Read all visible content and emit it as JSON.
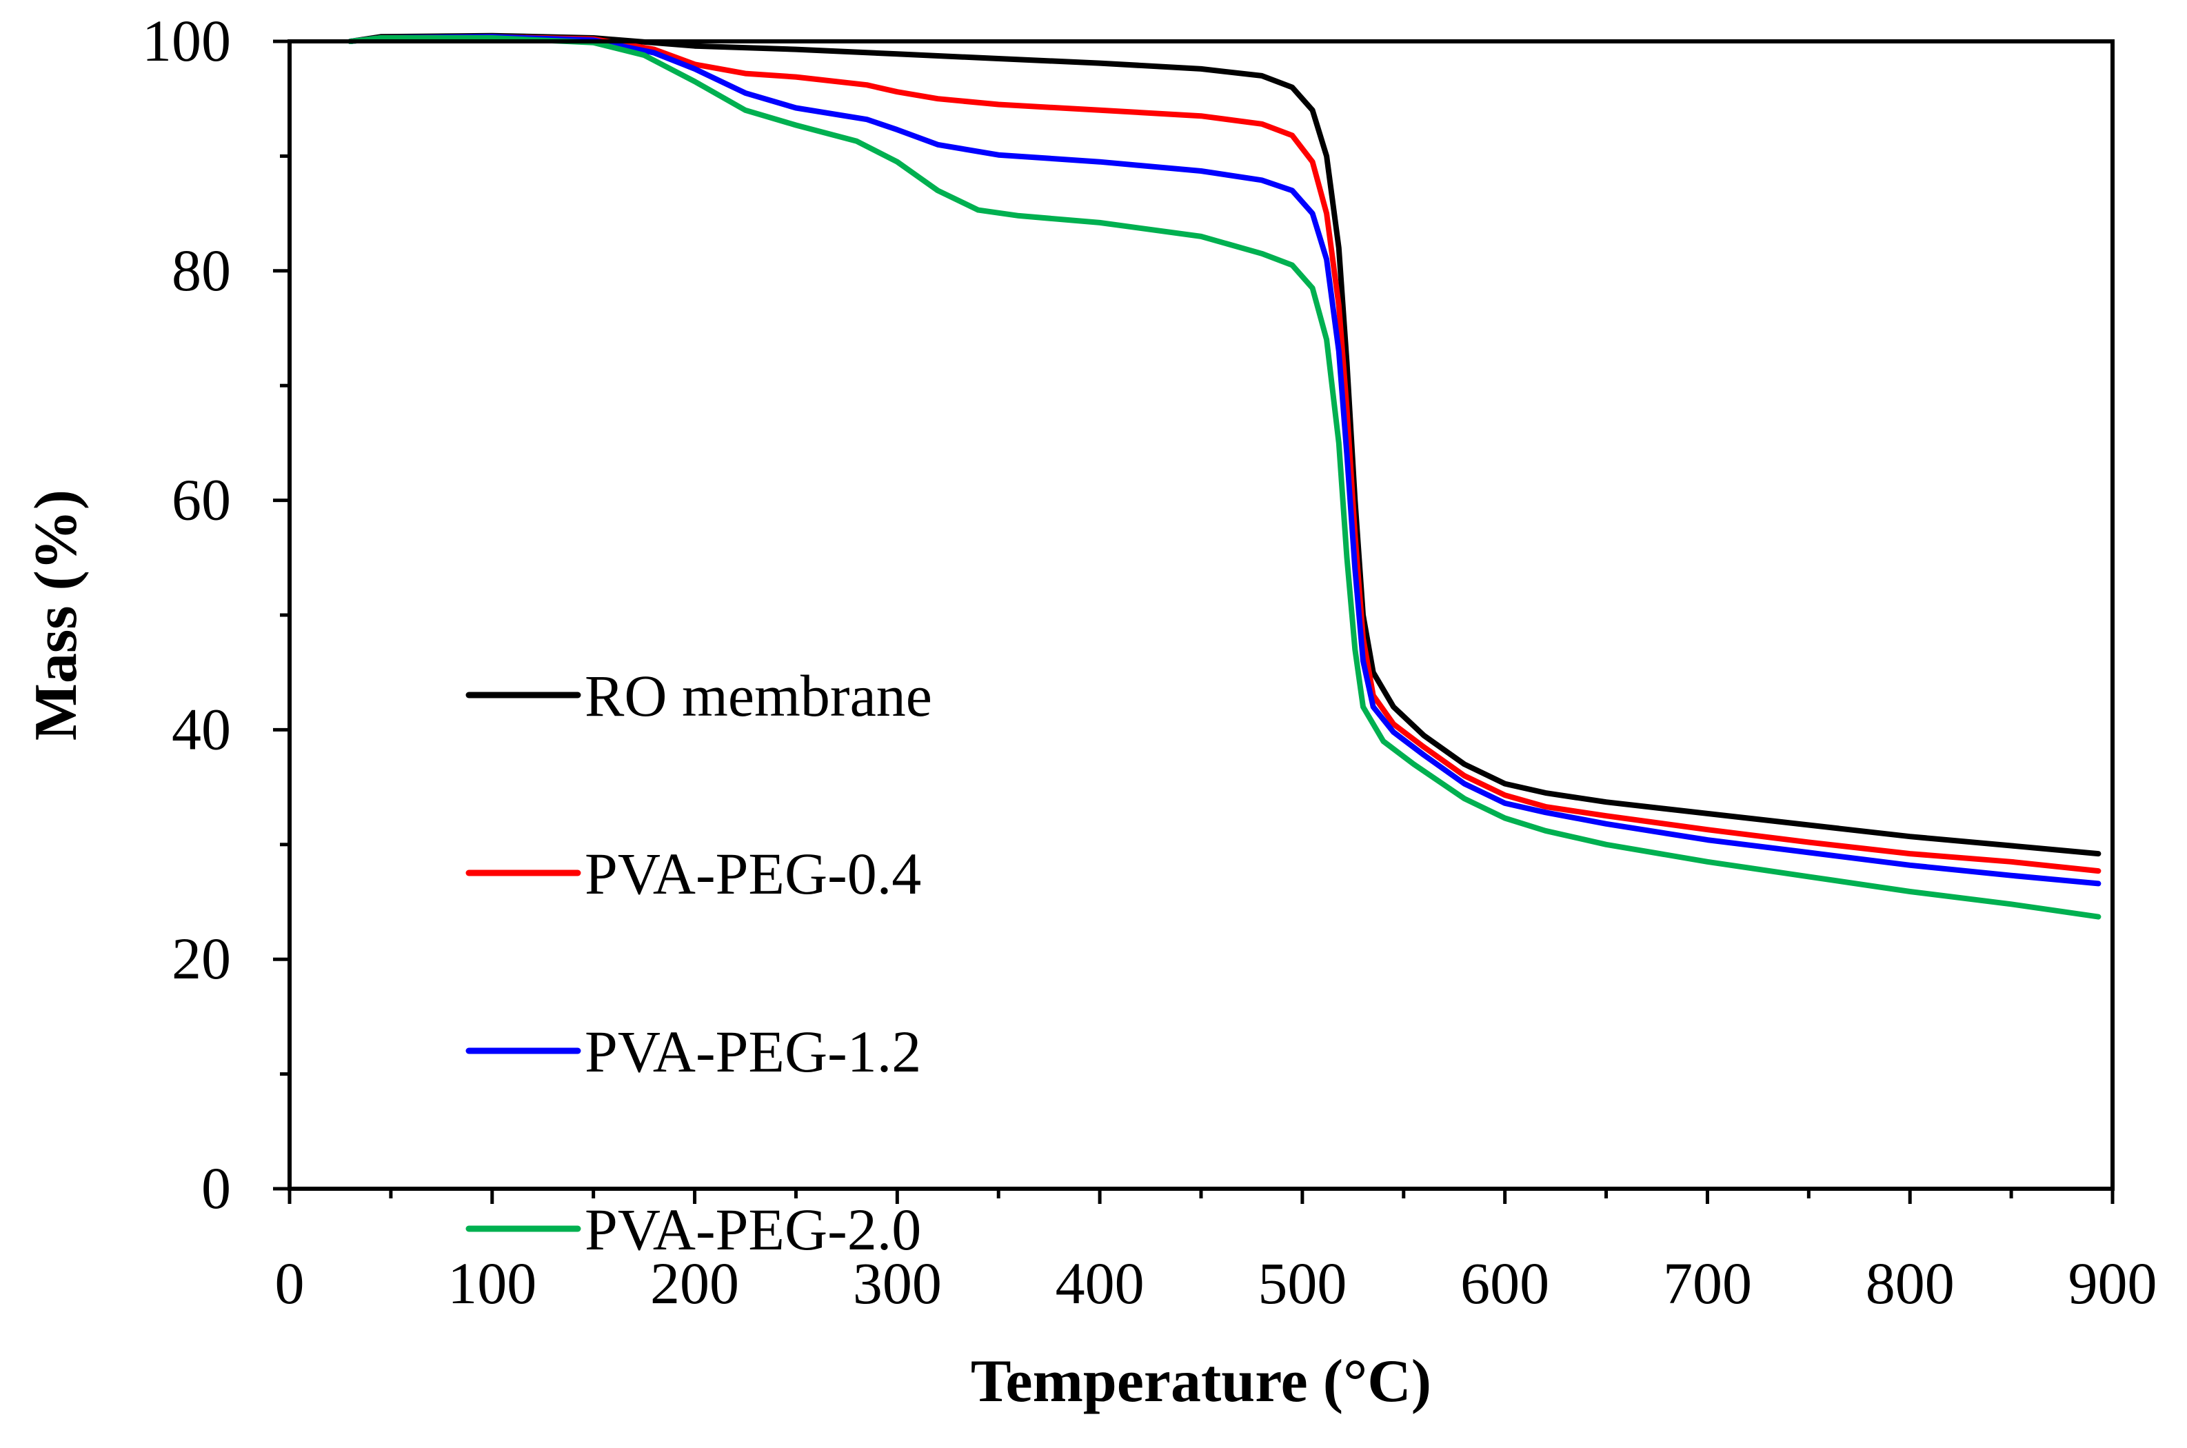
{
  "chart_data": {
    "type": "line",
    "title": "",
    "xlabel": "Temperature (°C)",
    "ylabel": "Mass (%)",
    "xlim": [
      0,
      900
    ],
    "ylim": [
      0,
      100
    ],
    "x_ticks": [
      "0",
      "100",
      "200",
      "300",
      "400",
      "500",
      "600",
      "700",
      "800",
      "900"
    ],
    "y_ticks": [
      "0",
      "20",
      "40",
      "60",
      "80",
      "100"
    ],
    "grid": false,
    "legend_position": "left-center",
    "series": [
      {
        "name": "RO membrane",
        "color": "#000000",
        "points": [
          [
            30,
            100
          ],
          [
            45,
            100.4
          ],
          [
            100,
            100.5
          ],
          [
            150,
            100.3
          ],
          [
            200,
            99.6
          ],
          [
            250,
            99.3
          ],
          [
            300,
            98.9
          ],
          [
            350,
            98.5
          ],
          [
            400,
            98.1
          ],
          [
            450,
            97.6
          ],
          [
            480,
            97
          ],
          [
            495,
            96
          ],
          [
            505,
            94
          ],
          [
            512,
            90
          ],
          [
            518,
            82
          ],
          [
            522,
            72
          ],
          [
            526,
            60
          ],
          [
            530,
            50
          ],
          [
            535,
            45
          ],
          [
            545,
            42
          ],
          [
            560,
            39.5
          ],
          [
            580,
            37
          ],
          [
            600,
            35.3
          ],
          [
            620,
            34.5
          ],
          [
            650,
            33.7
          ],
          [
            700,
            32.7
          ],
          [
            750,
            31.7
          ],
          [
            800,
            30.7
          ],
          [
            850,
            29.9
          ],
          [
            893,
            29.2
          ]
        ]
      },
      {
        "name": "PVA-PEG-0.4",
        "color": "#ff0000",
        "points": [
          [
            30,
            100
          ],
          [
            45,
            100.3
          ],
          [
            100,
            100.4
          ],
          [
            150,
            100.2
          ],
          [
            180,
            99.3
          ],
          [
            200,
            98
          ],
          [
            225,
            97.2
          ],
          [
            250,
            96.9
          ],
          [
            285,
            96.2
          ],
          [
            300,
            95.6
          ],
          [
            320,
            95
          ],
          [
            350,
            94.5
          ],
          [
            400,
            94
          ],
          [
            450,
            93.5
          ],
          [
            480,
            92.8
          ],
          [
            495,
            91.8
          ],
          [
            505,
            89.5
          ],
          [
            512,
            85
          ],
          [
            518,
            77
          ],
          [
            522,
            68
          ],
          [
            526,
            57
          ],
          [
            530,
            48
          ],
          [
            535,
            43
          ],
          [
            545,
            40.5
          ],
          [
            560,
            38.5
          ],
          [
            580,
            36
          ],
          [
            600,
            34.3
          ],
          [
            620,
            33.3
          ],
          [
            650,
            32.5
          ],
          [
            700,
            31.3
          ],
          [
            750,
            30.2
          ],
          [
            800,
            29.2
          ],
          [
            850,
            28.5
          ],
          [
            893,
            27.7
          ]
        ]
      },
      {
        "name": "PVA-PEG-1.2",
        "color": "#0000ff",
        "points": [
          [
            30,
            100
          ],
          [
            45,
            100.3
          ],
          [
            100,
            100.4
          ],
          [
            150,
            100.1
          ],
          [
            180,
            99
          ],
          [
            200,
            97.6
          ],
          [
            225,
            95.5
          ],
          [
            250,
            94.2
          ],
          [
            285,
            93.2
          ],
          [
            300,
            92.3
          ],
          [
            320,
            91
          ],
          [
            350,
            90.1
          ],
          [
            400,
            89.5
          ],
          [
            450,
            88.7
          ],
          [
            480,
            87.9
          ],
          [
            495,
            87
          ],
          [
            505,
            85
          ],
          [
            512,
            81
          ],
          [
            518,
            73
          ],
          [
            522,
            64
          ],
          [
            526,
            54
          ],
          [
            530,
            46
          ],
          [
            535,
            42
          ],
          [
            545,
            39.8
          ],
          [
            560,
            37.8
          ],
          [
            580,
            35.3
          ],
          [
            600,
            33.6
          ],
          [
            620,
            32.8
          ],
          [
            650,
            31.8
          ],
          [
            700,
            30.4
          ],
          [
            750,
            29.3
          ],
          [
            800,
            28.2
          ],
          [
            850,
            27.3
          ],
          [
            893,
            26.6
          ]
        ]
      },
      {
        "name": "PVA-PEG-2.0",
        "color": "#00b050",
        "points": [
          [
            30,
            100
          ],
          [
            45,
            100.3
          ],
          [
            100,
            100.3
          ],
          [
            150,
            99.9
          ],
          [
            175,
            98.8
          ],
          [
            200,
            96.5
          ],
          [
            225,
            94
          ],
          [
            250,
            92.7
          ],
          [
            280,
            91.3
          ],
          [
            300,
            89.5
          ],
          [
            320,
            87
          ],
          [
            340,
            85.3
          ],
          [
            360,
            84.8
          ],
          [
            400,
            84.2
          ],
          [
            450,
            83
          ],
          [
            480,
            81.5
          ],
          [
            495,
            80.5
          ],
          [
            505,
            78.5
          ],
          [
            512,
            74
          ],
          [
            518,
            65
          ],
          [
            522,
            55
          ],
          [
            526,
            47
          ],
          [
            530,
            42
          ],
          [
            540,
            39
          ],
          [
            555,
            37
          ],
          [
            580,
            34
          ],
          [
            600,
            32.3
          ],
          [
            620,
            31.2
          ],
          [
            650,
            30
          ],
          [
            700,
            28.5
          ],
          [
            750,
            27.2
          ],
          [
            800,
            25.9
          ],
          [
            850,
            24.8
          ],
          [
            893,
            23.7
          ]
        ]
      }
    ]
  }
}
